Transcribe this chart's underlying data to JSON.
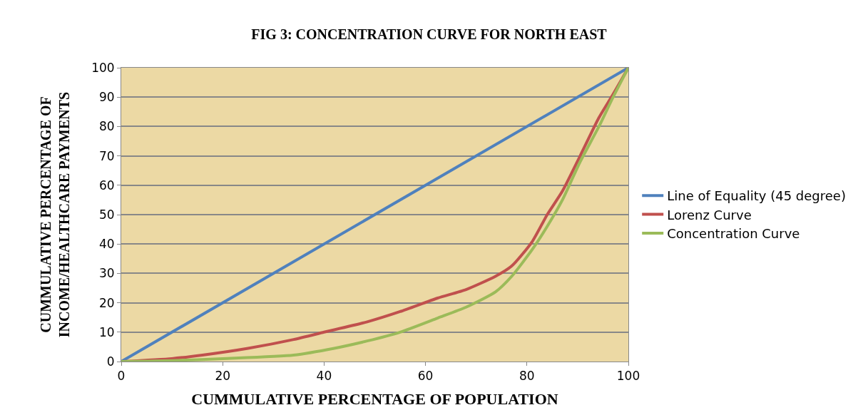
{
  "chart_data": {
    "type": "line",
    "title": "FIG 3: CONCENTRATION CURVE FOR NORTH EAST",
    "xlabel": "CUMMULATIVE PERCENTAGE OF POPULATION",
    "ylabel": "CUMMULATIVE PERCENTAGE OF INCOME/HEALTHCARE PAYMENTS",
    "series": [
      {
        "name": "Line of Equality (45 degree)",
        "color": "#4f81bd",
        "x": [
          0,
          100
        ],
        "values": [
          0,
          100
        ]
      },
      {
        "name": "Lorenz Curve",
        "color": "#c0504d",
        "x": [
          0,
          10,
          16,
          25,
          34,
          40,
          48.5,
          55,
          62.4,
          68,
          73.8,
          77,
          81,
          84,
          87,
          90.5,
          94.2,
          97,
          100
        ],
        "values": [
          0,
          1,
          2.2,
          4.5,
          7.5,
          10,
          13.5,
          17,
          21.6,
          24.5,
          29,
          32.5,
          40.7,
          50,
          58,
          70,
          83,
          91,
          100
        ]
      },
      {
        "name": "Concentration Curve",
        "color": "#9bbb59",
        "x": [
          0,
          10,
          20,
          34,
          42,
          48.5,
          55,
          62.4,
          68,
          73.8,
          77,
          81,
          84,
          87,
          90.5,
          94.2,
          97,
          100
        ],
        "values": [
          0,
          0.3,
          1,
          2.2,
          4.5,
          7,
          10,
          14.8,
          18.5,
          23.7,
          29,
          38,
          46,
          55,
          68,
          80,
          90,
          100
        ]
      }
    ],
    "xlim": [
      0,
      100
    ],
    "xticks": [
      0,
      20,
      40,
      60,
      80,
      100
    ],
    "ylim": [
      0,
      100
    ],
    "yticks": [
      0,
      10,
      20,
      30,
      40,
      50,
      60,
      70,
      80,
      90,
      100
    ],
    "grid": "y",
    "legend": "right",
    "marker": "none",
    "line_style": "solid"
  }
}
